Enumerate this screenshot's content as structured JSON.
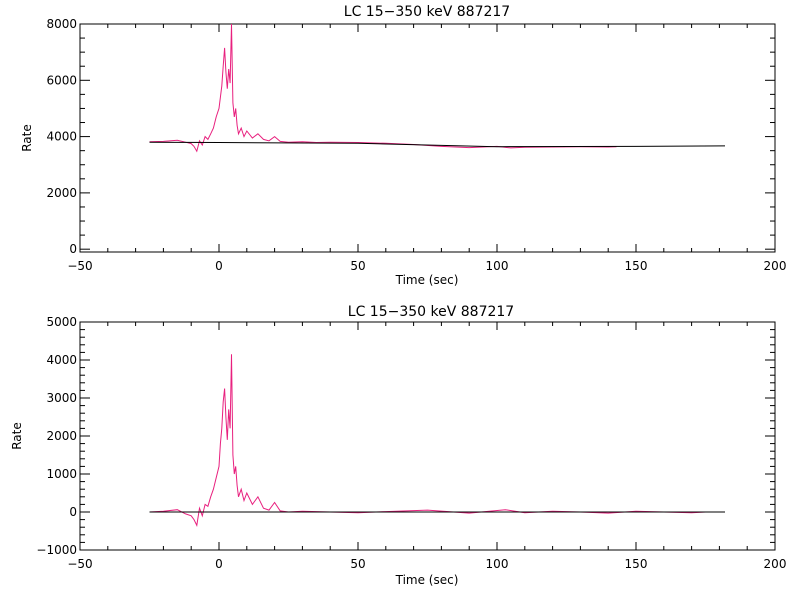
{
  "chart_data": [
    {
      "type": "line",
      "title": "LC 15−350 keV  887217",
      "xlabel": "Time (sec)",
      "ylabel": "Rate",
      "xlim": [
        -50,
        200
      ],
      "ylim": [
        -100,
        8000
      ],
      "xticks": [
        -50,
        0,
        50,
        100,
        150,
        200
      ],
      "xtick_labels": [
        "−50",
        "0",
        "50",
        "100",
        "150",
        "200"
      ],
      "yticks": [
        0,
        2000,
        4000,
        6000,
        8000
      ],
      "ytick_labels": [
        "0",
        "2000",
        "4000",
        "6000",
        "8000"
      ],
      "grid": false,
      "series": [
        {
          "color": "#e8207e",
          "x": [
            -25,
            -20,
            -15,
            -12,
            -10,
            -9,
            -8,
            -7,
            -6,
            -5,
            -4,
            -3,
            -2,
            -1,
            0,
            0.5,
            1,
            1.5,
            2,
            2.5,
            3,
            3.5,
            4,
            4.5,
            5,
            5.5,
            6,
            6.5,
            7,
            8,
            9,
            10,
            12,
            14,
            16,
            18,
            20,
            22,
            25,
            30,
            35,
            40,
            50,
            60,
            70,
            80,
            90,
            100,
            105,
            110,
            120,
            130,
            140,
            143
          ],
          "y": [
            3820,
            3830,
            3870,
            3800,
            3750,
            3650,
            3480,
            3850,
            3700,
            4000,
            3900,
            4100,
            4300,
            4700,
            5000,
            5400,
            5800,
            6500,
            7150,
            6300,
            5700,
            6400,
            5900,
            8050,
            5200,
            4700,
            5000,
            4400,
            4100,
            4300,
            4000,
            4200,
            3950,
            4100,
            3900,
            3850,
            4000,
            3830,
            3800,
            3820,
            3790,
            3800,
            3790,
            3760,
            3720,
            3650,
            3610,
            3650,
            3600,
            3620,
            3630,
            3640,
            3630,
            3640
          ]
        },
        {
          "color": "#000000",
          "x": [
            -25,
            0,
            50,
            100,
            150,
            182
          ],
          "y": [
            3800,
            3790,
            3760,
            3640,
            3650,
            3670
          ]
        }
      ]
    },
    {
      "type": "line",
      "title": "LC 15−350 keV  887217",
      "xlabel": "Time (sec)",
      "ylabel": "Rate",
      "xlim": [
        -50,
        200
      ],
      "ylim": [
        -1000,
        5000
      ],
      "xticks": [
        -50,
        0,
        50,
        100,
        150,
        200
      ],
      "xtick_labels": [
        "−50",
        "0",
        "50",
        "100",
        "150",
        "200"
      ],
      "yticks": [
        -1000,
        0,
        1000,
        2000,
        3000,
        4000,
        5000
      ],
      "ytick_labels": [
        "−1000",
        "0",
        "1000",
        "2000",
        "3000",
        "4000",
        "5000"
      ],
      "grid": false,
      "series": [
        {
          "color": "#e8207e",
          "x": [
            -25,
            -20,
            -15,
            -12,
            -10,
            -9,
            -8,
            -7,
            -6,
            -5,
            -4,
            -3,
            -2,
            -1,
            0,
            0.5,
            1,
            1.5,
            2,
            2.5,
            3,
            3.5,
            4,
            4.5,
            5,
            5.5,
            6,
            6.5,
            7,
            8,
            9,
            10,
            12,
            14,
            16,
            18,
            20,
            22,
            25,
            30,
            40,
            50,
            60,
            75,
            90,
            103,
            110,
            120,
            130,
            140,
            150,
            160,
            170,
            175
          ],
          "y": [
            0,
            20,
            60,
            -50,
            -100,
            -200,
            -350,
            100,
            -100,
            200,
            150,
            400,
            600,
            900,
            1200,
            1800,
            2200,
            2900,
            3250,
            2500,
            1900,
            2700,
            2200,
            4150,
            1500,
            1000,
            1200,
            700,
            400,
            600,
            300,
            500,
            200,
            400,
            100,
            50,
            250,
            30,
            0,
            20,
            0,
            -20,
            10,
            50,
            -30,
            60,
            -20,
            20,
            0,
            -30,
            20,
            0,
            -20,
            0
          ]
        },
        {
          "color": "#000000",
          "x": [
            -25,
            182
          ],
          "y": [
            0,
            0
          ]
        }
      ]
    }
  ]
}
